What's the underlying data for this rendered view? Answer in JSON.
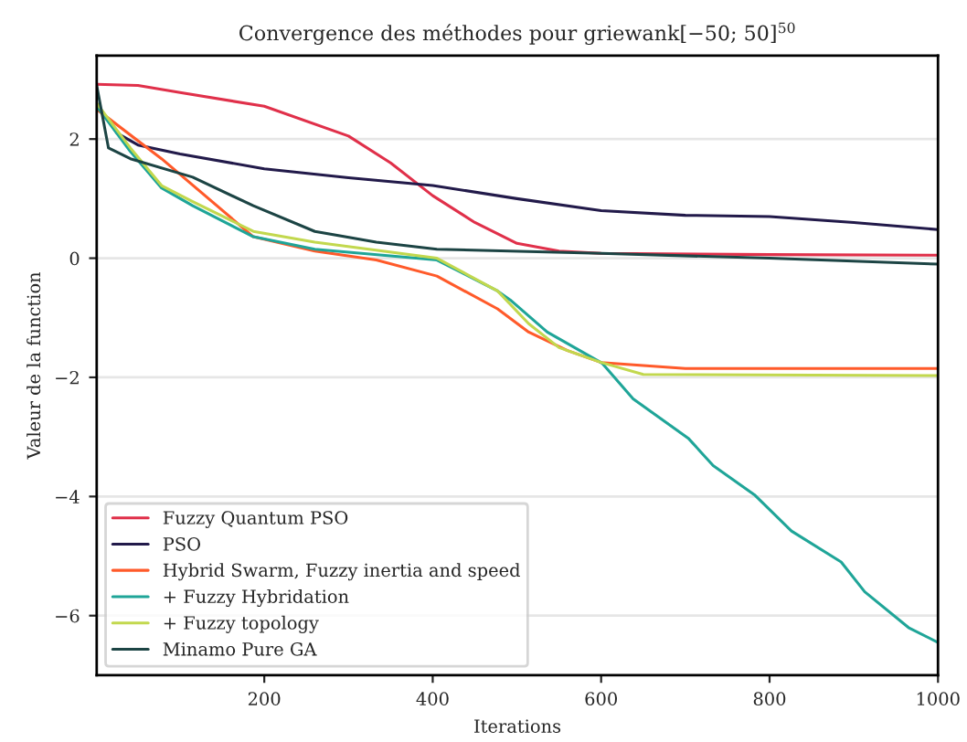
{
  "chart_data": {
    "type": "line",
    "title": "Convergence des méthodes pour griewank[−50; 50]$^{50}$",
    "xlabel": "Iterations",
    "ylabel": "Valeur de la function",
    "xlim": [
      1,
      1000
    ],
    "xticks": [
      200,
      400,
      600,
      800,
      1000
    ],
    "ylim": [
      -7,
      3.4
    ],
    "yticks": [
      {
        "value": -6,
        "label": "−6"
      },
      {
        "value": -4,
        "label": "−4"
      },
      {
        "value": -2,
        "label": "−2"
      },
      0,
      2
    ],
    "grid": "y",
    "legend": "bottom left",
    "marker": "none",
    "line_style": "solid",
    "series": [
      {
        "name": "Fuzzy Quantum PSO",
        "color": "#e0304a",
        "x": [
          1,
          50,
          100,
          200,
          300,
          350,
          400,
          450,
          500,
          550,
          600,
          800,
          1000
        ],
        "values": [
          2.92,
          2.9,
          2.78,
          2.55,
          2.05,
          1.6,
          1.05,
          0.6,
          0.25,
          0.12,
          0.08,
          0.06,
          0.05
        ]
      },
      {
        "name": "PSO",
        "color": "#221a4a",
        "x": [
          1,
          25,
          50,
          100,
          200,
          300,
          400,
          500,
          600,
          700,
          800,
          900,
          1000
        ],
        "values": [
          2.6,
          2.1,
          1.9,
          1.75,
          1.5,
          1.35,
          1.22,
          1.0,
          0.8,
          0.72,
          0.7,
          0.6,
          0.48
        ]
      },
      {
        "name": "Hybrid Swarm, Fuzzy inertia and speed",
        "color": "#ff5a2a",
        "x": [
          1,
          78,
          187,
          260,
          333,
          405,
          477,
          514,
          560,
          600,
          700,
          1000
        ],
        "values": [
          2.5,
          1.67,
          0.36,
          0.12,
          -0.03,
          -0.3,
          -0.85,
          -1.24,
          -1.55,
          -1.75,
          -1.85,
          -1.85
        ]
      },
      {
        "name": "+ Fuzzy Hybridation",
        "color": "#1fa598",
        "x": [
          1,
          41,
          78,
          115,
          187,
          260,
          405,
          477,
          492,
          536,
          601,
          638,
          704,
          733,
          782,
          826,
          885,
          913,
          965,
          1000
        ],
        "values": [
          2.55,
          1.79,
          1.18,
          0.88,
          0.36,
          0.15,
          -0.03,
          -0.55,
          -0.7,
          -1.24,
          -1.76,
          -2.36,
          -3.03,
          -3.48,
          -3.97,
          -4.58,
          -5.1,
          -5.6,
          -6.2,
          -6.45
        ]
      },
      {
        "name": "+ Fuzzy topology",
        "color": "#c2d84e",
        "x": [
          1,
          41,
          78,
          115,
          187,
          260,
          405,
          477,
          514,
          550,
          600,
          650,
          1000
        ],
        "values": [
          2.6,
          1.85,
          1.22,
          0.95,
          0.45,
          0.27,
          0.0,
          -0.55,
          -1.1,
          -1.5,
          -1.75,
          -1.95,
          -1.97
        ]
      },
      {
        "name": "Minamo Pure GA",
        "color": "#1c4444",
        "x": [
          1,
          15,
          41,
          115,
          187,
          260,
          333,
          405,
          600,
          800,
          1000
        ],
        "values": [
          2.9,
          1.85,
          1.67,
          1.36,
          0.88,
          0.45,
          0.27,
          0.15,
          0.08,
          0.0,
          -0.1
        ]
      }
    ]
  }
}
